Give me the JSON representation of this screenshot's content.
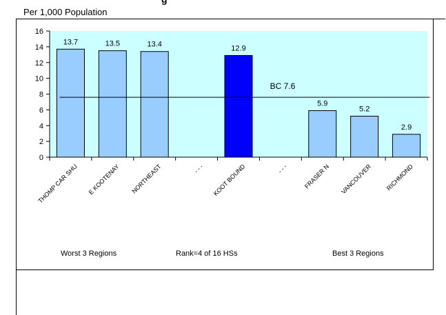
{
  "header": {
    "title_fragment": "g",
    "unit_label": "Per 1,000 Population"
  },
  "footer": {
    "worst_label": "Worst 3 Regions",
    "rank_label": "Rank=4 of 16 HSs",
    "best_label": "Best 3 Regions"
  },
  "colors": {
    "plot_bg": "#CCFFFF",
    "bar_light": "#99CCFF",
    "bar_highlight": "#0000FF",
    "reference_line": "#000000"
  },
  "chart_data": {
    "type": "bar",
    "categories": [
      "THOMP CAR SHU",
      "E KOOTENAY",
      "NORTHEAST",
      "- - -",
      "KOOT BOUND",
      "- - -",
      "FRASER N",
      "VANCOUVER",
      "RICHMOND"
    ],
    "values": [
      13.7,
      13.5,
      13.4,
      null,
      12.9,
      null,
      5.9,
      5.2,
      2.9
    ],
    "data_labels": [
      "13.7",
      "13.5",
      "13.4",
      "",
      "12.9",
      "",
      "5.9",
      "5.2",
      "2.9"
    ],
    "highlight_index": 4,
    "ylim": [
      0,
      16
    ],
    "yticks": [
      0,
      2,
      4,
      6,
      8,
      10,
      12,
      14,
      16
    ],
    "reference": {
      "label": "BC 7.6",
      "value": 7.6
    },
    "grid": false,
    "legend": "none"
  }
}
